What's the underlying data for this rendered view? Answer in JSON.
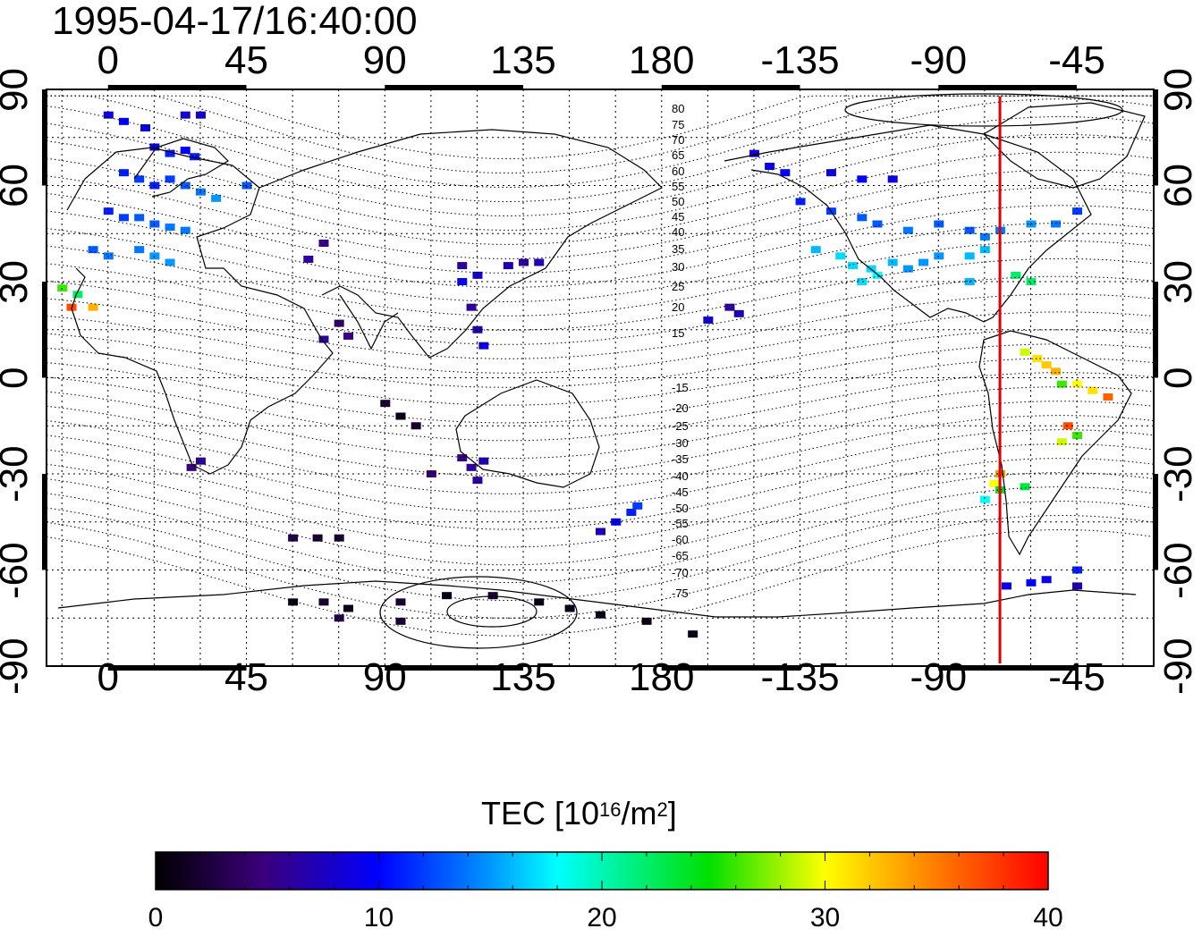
{
  "title": "1995-04-17/16:40:00",
  "axes": {
    "lon_ticks": [
      "0",
      "45",
      "90",
      "135",
      "180",
      "-135",
      "-90",
      "-45"
    ],
    "lat_ticks": [
      "90",
      "60",
      "30",
      "0",
      "-30",
      "-60",
      "-90"
    ]
  },
  "magnetic_latitude_labels": [
    "80",
    "75",
    "70",
    "65",
    "60",
    "55",
    "50",
    "45",
    "40",
    "35",
    "30",
    "25",
    "20",
    "15",
    "-15",
    "-20",
    "-25",
    "-30",
    "-35",
    "-40",
    "-45",
    "-50",
    "-55",
    "-60",
    "-65",
    "-70",
    "-75"
  ],
  "colorbar": {
    "label_main": "TEC  [10",
    "label_exp": "16",
    "label_mid": "/m",
    "label_exp2": "2",
    "label_end": "]",
    "ticks": [
      "0",
      "10",
      "20",
      "30",
      "40"
    ],
    "range": [
      0,
      40
    ]
  },
  "colors": {
    "terminator_line": "#dd0000"
  },
  "map_data": {
    "projection": "equirectangular",
    "lon_range": [
      -20,
      340
    ],
    "lat_range": [
      -90,
      90
    ],
    "terminator_lon": -70,
    "tec_points": [
      {
        "lon": 0,
        "lat": 82,
        "tec": 9
      },
      {
        "lon": 5,
        "lat": 80,
        "tec": 10
      },
      {
        "lon": 12,
        "lat": 78,
        "tec": 9
      },
      {
        "lon": 25,
        "lat": 82,
        "tec": 8
      },
      {
        "lon": 30,
        "lat": 82,
        "tec": 8
      },
      {
        "lon": 15,
        "lat": 72,
        "tec": 10
      },
      {
        "lon": 20,
        "lat": 70,
        "tec": 11
      },
      {
        "lon": 25,
        "lat": 71,
        "tec": 10
      },
      {
        "lon": 28,
        "lat": 69,
        "tec": 11
      },
      {
        "lon": 5,
        "lat": 64,
        "tec": 11
      },
      {
        "lon": 10,
        "lat": 62,
        "tec": 12
      },
      {
        "lon": 15,
        "lat": 60,
        "tec": 11
      },
      {
        "lon": 20,
        "lat": 62,
        "tec": 12
      },
      {
        "lon": 25,
        "lat": 60,
        "tec": 13
      },
      {
        "lon": 30,
        "lat": 58,
        "tec": 14
      },
      {
        "lon": 35,
        "lat": 56,
        "tec": 15
      },
      {
        "lon": 0,
        "lat": 52,
        "tec": 11
      },
      {
        "lon": 5,
        "lat": 50,
        "tec": 12
      },
      {
        "lon": 10,
        "lat": 50,
        "tec": 13
      },
      {
        "lon": 15,
        "lat": 48,
        "tec": 13
      },
      {
        "lon": 20,
        "lat": 47,
        "tec": 14
      },
      {
        "lon": 25,
        "lat": 46,
        "tec": 14
      },
      {
        "lon": -5,
        "lat": 40,
        "tec": 13
      },
      {
        "lon": 0,
        "lat": 38,
        "tec": 14
      },
      {
        "lon": 10,
        "lat": 40,
        "tec": 14
      },
      {
        "lon": 15,
        "lat": 38,
        "tec": 15
      },
      {
        "lon": 20,
        "lat": 36,
        "tec": 15
      },
      {
        "lon": 45,
        "lat": 60,
        "tec": 13
      },
      {
        "lon": -15,
        "lat": 28,
        "tec": 26
      },
      {
        "lon": -10,
        "lat": 26,
        "tec": 22
      },
      {
        "lon": -12,
        "lat": 22,
        "tec": 37
      },
      {
        "lon": -5,
        "lat": 22,
        "tec": 33
      },
      {
        "lon": 70,
        "lat": 42,
        "tec": 5
      },
      {
        "lon": 65,
        "lat": 37,
        "tec": 6
      },
      {
        "lon": 75,
        "lat": 17,
        "tec": 4
      },
      {
        "lon": 78,
        "lat": 13,
        "tec": 5
      },
      {
        "lon": 70,
        "lat": 12,
        "tec": 6
      },
      {
        "lon": 115,
        "lat": 35,
        "tec": 6
      },
      {
        "lon": 120,
        "lat": 32,
        "tec": 8
      },
      {
        "lon": 115,
        "lat": 30,
        "tec": 10
      },
      {
        "lon": 130,
        "lat": 35,
        "tec": 7
      },
      {
        "lon": 135,
        "lat": 36,
        "tec": 6
      },
      {
        "lon": 140,
        "lat": 36,
        "tec": 7
      },
      {
        "lon": 118,
        "lat": 22,
        "tec": 6
      },
      {
        "lon": 120,
        "lat": 15,
        "tec": 7
      },
      {
        "lon": 122,
        "lat": 10,
        "tec": 9
      },
      {
        "lon": 202,
        "lat": 22,
        "tec": 6
      },
      {
        "lon": 205,
        "lat": 20,
        "tec": 7
      },
      {
        "lon": 195,
        "lat": 18,
        "tec": 8
      },
      {
        "lon": 90,
        "lat": -8,
        "tec": 2
      },
      {
        "lon": 95,
        "lat": -12,
        "tec": 1
      },
      {
        "lon": 100,
        "lat": -15,
        "tec": 2
      },
      {
        "lon": 30,
        "lat": -26,
        "tec": 6
      },
      {
        "lon": 27,
        "lat": -28,
        "tec": 5
      },
      {
        "lon": 115,
        "lat": -25,
        "tec": 5
      },
      {
        "lon": 118,
        "lat": -28,
        "tec": 6
      },
      {
        "lon": 122,
        "lat": -26,
        "tec": 7
      },
      {
        "lon": 120,
        "lat": -32,
        "tec": 6
      },
      {
        "lon": 105,
        "lat": -30,
        "tec": 5
      },
      {
        "lon": 165,
        "lat": -45,
        "tec": 10
      },
      {
        "lon": 170,
        "lat": -42,
        "tec": 11
      },
      {
        "lon": 172,
        "lat": -40,
        "tec": 12
      },
      {
        "lon": 160,
        "lat": -48,
        "tec": 7
      },
      {
        "lon": 60,
        "lat": -50,
        "tec": 3
      },
      {
        "lon": 68,
        "lat": -50,
        "tec": 2
      },
      {
        "lon": 75,
        "lat": -50,
        "tec": 2
      },
      {
        "lon": 60,
        "lat": -70,
        "tec": 1
      },
      {
        "lon": 70,
        "lat": -70,
        "tec": 2
      },
      {
        "lon": 78,
        "lat": -72,
        "tec": 1
      },
      {
        "lon": 95,
        "lat": -70,
        "tec": 2
      },
      {
        "lon": 110,
        "lat": -68,
        "tec": 1
      },
      {
        "lon": 125,
        "lat": -68,
        "tec": 2
      },
      {
        "lon": 140,
        "lat": -70,
        "tec": 1
      },
      {
        "lon": 150,
        "lat": -72,
        "tec": 1
      },
      {
        "lon": 160,
        "lat": -74,
        "tec": 1
      },
      {
        "lon": 175,
        "lat": -76,
        "tec": 1
      },
      {
        "lon": 190,
        "lat": -80,
        "tec": 1
      },
      {
        "lon": 75,
        "lat": -75,
        "tec": 3
      },
      {
        "lon": 95,
        "lat": -76,
        "tec": 2
      },
      {
        "lon": -150,
        "lat": 70,
        "tec": 8
      },
      {
        "lon": -145,
        "lat": 66,
        "tec": 9
      },
      {
        "lon": -140,
        "lat": 64,
        "tec": 10
      },
      {
        "lon": -125,
        "lat": 64,
        "tec": 9
      },
      {
        "lon": -115,
        "lat": 62,
        "tec": 10
      },
      {
        "lon": -105,
        "lat": 62,
        "tec": 9
      },
      {
        "lon": -135,
        "lat": 55,
        "tec": 11
      },
      {
        "lon": -125,
        "lat": 52,
        "tec": 12
      },
      {
        "lon": -115,
        "lat": 50,
        "tec": 13
      },
      {
        "lon": -110,
        "lat": 48,
        "tec": 13
      },
      {
        "lon": -100,
        "lat": 46,
        "tec": 14
      },
      {
        "lon": -90,
        "lat": 48,
        "tec": 13
      },
      {
        "lon": -80,
        "lat": 46,
        "tec": 13
      },
      {
        "lon": -75,
        "lat": 44,
        "tec": 14
      },
      {
        "lon": -70,
        "lat": 46,
        "tec": 14
      },
      {
        "lon": -60,
        "lat": 48,
        "tec": 15
      },
      {
        "lon": -52,
        "lat": 48,
        "tec": 14
      },
      {
        "lon": -45,
        "lat": 52,
        "tec": 12
      },
      {
        "lon": -130,
        "lat": 40,
        "tec": 16
      },
      {
        "lon": -122,
        "lat": 38,
        "tec": 17
      },
      {
        "lon": -118,
        "lat": 35,
        "tec": 17
      },
      {
        "lon": -112,
        "lat": 34,
        "tec": 17
      },
      {
        "lon": -105,
        "lat": 36,
        "tec": 16
      },
      {
        "lon": -100,
        "lat": 34,
        "tec": 15
      },
      {
        "lon": -95,
        "lat": 36,
        "tec": 15
      },
      {
        "lon": -90,
        "lat": 38,
        "tec": 15
      },
      {
        "lon": -80,
        "lat": 38,
        "tec": 16
      },
      {
        "lon": -75,
        "lat": 40,
        "tec": 16
      },
      {
        "lon": -115,
        "lat": 30,
        "tec": 17
      },
      {
        "lon": -110,
        "lat": 32,
        "tec": 18
      },
      {
        "lon": -80,
        "lat": 30,
        "tec": 16
      },
      {
        "lon": -65,
        "lat": 32,
        "tec": 22
      },
      {
        "lon": -60,
        "lat": 30,
        "tec": 22
      },
      {
        "lon": -62,
        "lat": 8,
        "tec": 29
      },
      {
        "lon": -58,
        "lat": 6,
        "tec": 31
      },
      {
        "lon": -55,
        "lat": 4,
        "tec": 32
      },
      {
        "lon": -52,
        "lat": 2,
        "tec": 33
      },
      {
        "lon": -50,
        "lat": -2,
        "tec": 26
      },
      {
        "lon": -45,
        "lat": -2,
        "tec": 30
      },
      {
        "lon": -40,
        "lat": -4,
        "tec": 31
      },
      {
        "lon": -35,
        "lat": -6,
        "tec": 36
      },
      {
        "lon": -48,
        "lat": -15,
        "tec": 37
      },
      {
        "lon": -45,
        "lat": -18,
        "tec": 26
      },
      {
        "lon": -50,
        "lat": -20,
        "tec": 29
      },
      {
        "lon": -70,
        "lat": -30,
        "tec": 34
      },
      {
        "lon": -72,
        "lat": -33,
        "tec": 30
      },
      {
        "lon": -70,
        "lat": -35,
        "tec": 24
      },
      {
        "lon": -62,
        "lat": -34,
        "tec": 23
      },
      {
        "lon": -75,
        "lat": -38,
        "tec": 18
      },
      {
        "lon": -68,
        "lat": -65,
        "tec": 9
      },
      {
        "lon": -60,
        "lat": -64,
        "tec": 10
      },
      {
        "lon": -55,
        "lat": -63,
        "tec": 9
      },
      {
        "lon": -45,
        "lat": -60,
        "tec": 11
      },
      {
        "lon": -45,
        "lat": -65,
        "tec": 7
      }
    ]
  }
}
